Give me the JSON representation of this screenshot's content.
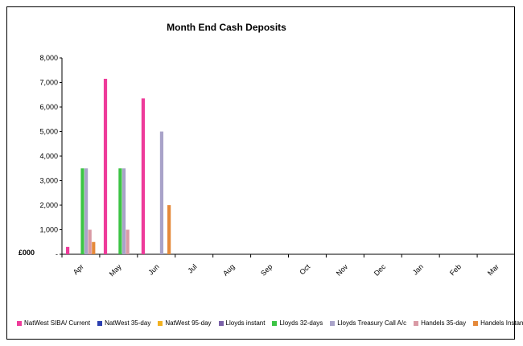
{
  "chart_data": {
    "type": "bar",
    "title": "Month End Cash Deposits",
    "ylabel": "£000",
    "ylim": [
      0,
      8000
    ],
    "yticks": [
      "-",
      "1,000",
      "2,000",
      "3,000",
      "4,000",
      "5,000",
      "6,000",
      "7,000",
      "8,000"
    ],
    "categories": [
      "Apr",
      "May",
      "Jun",
      "Jul",
      "Aug",
      "Sep",
      "Oct",
      "Nov",
      "Dec",
      "Jan",
      "Feb",
      "Mar"
    ],
    "series": [
      {
        "name": "NatWest SIBA/ Current",
        "color": "#ee3b9a",
        "values": [
          300,
          7150,
          6350,
          null,
          null,
          null,
          null,
          null,
          null,
          null,
          null,
          null
        ]
      },
      {
        "name": "NatWest 35-day",
        "color": "#2b3fb0",
        "values": [
          null,
          null,
          null,
          null,
          null,
          null,
          null,
          null,
          null,
          null,
          null,
          null
        ]
      },
      {
        "name": "NatWest 95-day",
        "color": "#f2b120",
        "values": [
          null,
          null,
          null,
          null,
          null,
          null,
          null,
          null,
          null,
          null,
          null,
          null
        ]
      },
      {
        "name": "Lloyds instant",
        "color": "#7b62a9",
        "values": [
          null,
          null,
          null,
          null,
          null,
          null,
          null,
          null,
          null,
          null,
          null,
          null
        ]
      },
      {
        "name": "Lloyds 32-days",
        "color": "#3cc445",
        "values": [
          3500,
          3500,
          null,
          null,
          null,
          null,
          null,
          null,
          null,
          null,
          null,
          null
        ]
      },
      {
        "name": "Lloyds Treasury Call A/c",
        "color": "#a9a3c9",
        "values": [
          3500,
          3500,
          5000,
          null,
          null,
          null,
          null,
          null,
          null,
          null,
          null,
          null
        ]
      },
      {
        "name": "Handels 35-day",
        "color": "#d99aa5",
        "values": [
          1000,
          1000,
          null,
          null,
          null,
          null,
          null,
          null,
          null,
          null,
          null,
          null
        ]
      },
      {
        "name": "Handels Instant",
        "color": "#e5893a",
        "values": [
          500,
          null,
          2000,
          null,
          null,
          null,
          null,
          null,
          null,
          null,
          null,
          null
        ]
      }
    ],
    "grid": false,
    "legend_position": "bottom"
  }
}
